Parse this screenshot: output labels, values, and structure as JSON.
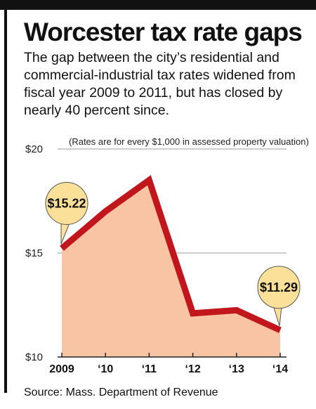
{
  "header": {
    "title": "Worcester tax rate gaps",
    "subtitle": "The gap between the city’s residential and commercial-industrial tax rates widened from fiscal year 2009 to 2011, but has closed by nearly 40 percent since.",
    "source": "Source: Mass. Department of Revenue"
  },
  "chart_data": {
    "type": "area",
    "title": "Worcester tax rate gaps",
    "note": "(Rates are for every $1,000 in assessed property valuation)",
    "x": [
      0,
      1,
      2,
      3,
      4,
      5
    ],
    "x_tick_labels": [
      "2009",
      "‘10",
      "‘11",
      "‘12",
      "‘13",
      "‘14"
    ],
    "series": [
      {
        "values": [
          15.22,
          17.0,
          18.5,
          12.1,
          12.25,
          11.29
        ]
      }
    ],
    "ylim": [
      10,
      20
    ],
    "y_ticks": [
      10,
      15,
      20
    ],
    "y_tick_labels": [
      "$10",
      "$15",
      "$20"
    ],
    "grid": true,
    "annotations": [
      {
        "index": 0,
        "text": "$15.22"
      },
      {
        "index": 5,
        "text": "$11.29"
      }
    ],
    "colors": {
      "line": "#c0161c",
      "fill": "#f9c4a3",
      "callout": "#fbe09a",
      "grid": "#9a9a9a"
    }
  }
}
